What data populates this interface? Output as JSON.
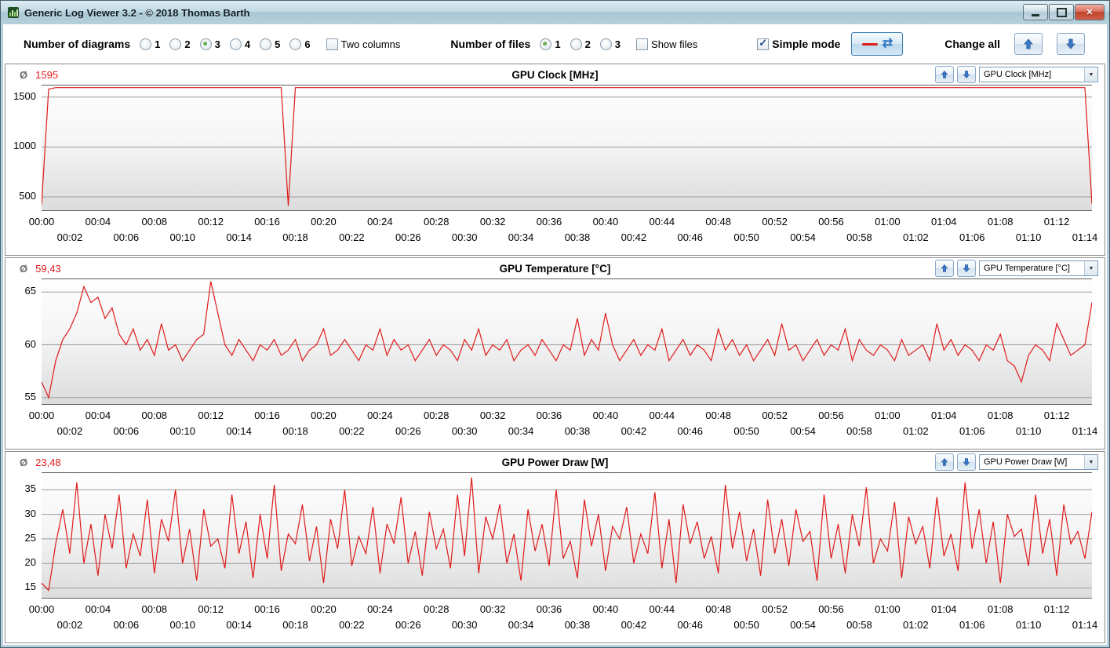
{
  "window": {
    "title": "Generic Log Viewer 3.2 - © 2018 Thomas Barth"
  },
  "toolbar": {
    "diagrams_label": "Number of diagrams",
    "diagram_options": [
      "1",
      "2",
      "3",
      "4",
      "5",
      "6"
    ],
    "diagrams_selected": "3",
    "two_columns_label": "Two columns",
    "files_label": "Number of files",
    "file_options": [
      "1",
      "2",
      "3"
    ],
    "files_selected": "1",
    "show_files_label": "Show files",
    "simple_mode_label": "Simple mode",
    "change_all_label": "Change all",
    "refresh_icon": "⇄"
  },
  "panels": [
    {
      "avg_symbol": "Ø",
      "avg": "1595",
      "title": "GPU Clock [MHz]",
      "combo": "GPU Clock [MHz]"
    },
    {
      "avg_symbol": "Ø",
      "avg": "59,43",
      "title": "GPU Temperature [°C]",
      "combo": "GPU Temperature [°C]"
    },
    {
      "avg_symbol": "Ø",
      "avg": "23,48",
      "title": "GPU Power Draw [W]",
      "combo": "GPU Power Draw [W]"
    }
  ],
  "chart_data": [
    {
      "type": "line",
      "title": "GPU Clock [MHz]",
      "average": 1595,
      "color": "#e01b1b",
      "grid": "horizontal",
      "ylim": [
        366,
        1616
      ],
      "yticks": [
        500,
        1000,
        1500
      ],
      "x_min": 0,
      "x_max": 74.5,
      "x_step": 0.5,
      "x_labels_row1": [
        "00:00",
        "00:04",
        "00:08",
        "00:12",
        "00:16",
        "00:20",
        "00:24",
        "00:28",
        "00:32",
        "00:36",
        "00:40",
        "00:44",
        "00:48",
        "00:52",
        "00:56",
        "01:00",
        "01:04",
        "01:08",
        "01:12"
      ],
      "x_labels_row2": [
        "00:02",
        "00:06",
        "00:10",
        "00:14",
        "00:18",
        "00:22",
        "00:26",
        "00:30",
        "00:34",
        "00:38",
        "00:42",
        "00:46",
        "00:50",
        "00:54",
        "00:58",
        "01:02",
        "01:06",
        "01:10",
        "01:14"
      ],
      "values": [
        420,
        1580,
        1595,
        1595,
        1595,
        1595,
        1595,
        1595,
        1595,
        1595,
        1595,
        1595,
        1595,
        1595,
        1595,
        1595,
        1595,
        1595,
        1595,
        1595,
        1595,
        1595,
        1595,
        1595,
        1595,
        1595,
        1595,
        1595,
        1595,
        1595,
        1595,
        1595,
        1595,
        1595,
        1595,
        410,
        1595,
        1595,
        1595,
        1595,
        1595,
        1595,
        1595,
        1595,
        1595,
        1595,
        1595,
        1595,
        1595,
        1595,
        1595,
        1595,
        1595,
        1595,
        1595,
        1595,
        1595,
        1595,
        1595,
        1595,
        1595,
        1595,
        1595,
        1595,
        1595,
        1595,
        1595,
        1595,
        1595,
        1595,
        1595,
        1595,
        1595,
        1595,
        1595,
        1595,
        1595,
        1595,
        1595,
        1595,
        1595,
        1595,
        1595,
        1595,
        1595,
        1595,
        1595,
        1595,
        1595,
        1595,
        1595,
        1595,
        1595,
        1595,
        1595,
        1595,
        1595,
        1595,
        1595,
        1595,
        1595,
        1595,
        1595,
        1595,
        1595,
        1595,
        1595,
        1595,
        1595,
        1595,
        1595,
        1595,
        1595,
        1595,
        1595,
        1595,
        1595,
        1595,
        1595,
        1595,
        1595,
        1595,
        1595,
        1595,
        1595,
        1595,
        1595,
        1595,
        1595,
        1595,
        1595,
        1595,
        1595,
        1595,
        1595,
        1595,
        1595,
        1595,
        1595,
        1595,
        1595,
        1595,
        1595,
        1595,
        1595,
        1595,
        1595,
        1595,
        1595,
        430
      ]
    },
    {
      "type": "line",
      "title": "GPU Temperature [°C]",
      "average": 59.43,
      "color": "#e01b1b",
      "grid": "horizontal",
      "ylim": [
        54.4,
        66.2
      ],
      "yticks": [
        55,
        60,
        65
      ],
      "x_min": 0,
      "x_max": 74.5,
      "x_step": 0.5,
      "x_labels_row1": [
        "00:00",
        "00:04",
        "00:08",
        "00:12",
        "00:16",
        "00:20",
        "00:24",
        "00:28",
        "00:32",
        "00:36",
        "00:40",
        "00:44",
        "00:48",
        "00:52",
        "00:56",
        "01:00",
        "01:04",
        "01:08",
        "01:12"
      ],
      "x_labels_row2": [
        "00:02",
        "00:06",
        "00:10",
        "00:14",
        "00:18",
        "00:22",
        "00:26",
        "00:30",
        "00:34",
        "00:38",
        "00:42",
        "00:46",
        "00:50",
        "00:54",
        "00:58",
        "01:02",
        "01:06",
        "01:10",
        "01:14"
      ],
      "values": [
        56.5,
        55,
        58.5,
        60.5,
        61.5,
        63,
        65.5,
        64,
        64.5,
        62.5,
        63.5,
        61,
        60,
        61.5,
        59.5,
        60.5,
        59,
        62,
        59.5,
        60,
        58.5,
        59.5,
        60.5,
        61,
        66,
        63,
        60,
        59,
        60.5,
        59.5,
        58.5,
        60,
        59.5,
        60.5,
        59,
        59.5,
        60.5,
        58.5,
        59.5,
        60,
        61.5,
        59,
        59.5,
        60.5,
        59.5,
        58.5,
        60,
        59.5,
        61.5,
        59,
        60.5,
        59.5,
        60,
        58.5,
        59.5,
        60.5,
        59,
        60,
        59.5,
        58.5,
        60.5,
        59.5,
        61.5,
        59,
        60,
        59.5,
        60.5,
        58.5,
        59.5,
        60,
        59,
        60.5,
        59.5,
        58.5,
        60,
        59.5,
        62.5,
        59,
        60.5,
        59.5,
        63,
        60,
        58.5,
        59.5,
        60.5,
        59,
        60,
        59.5,
        61.5,
        58.5,
        59.5,
        60.5,
        59,
        60,
        59.5,
        58.5,
        61.5,
        59.5,
        60.5,
        59,
        60,
        58.5,
        59.5,
        60.5,
        59,
        62,
        59.5,
        60,
        58.5,
        59.5,
        60.5,
        59,
        60,
        59.5,
        61.5,
        58.5,
        60.5,
        59.5,
        59,
        60,
        59.5,
        58.5,
        60.5,
        59,
        59.5,
        60,
        58.5,
        62,
        59.5,
        60.5,
        59,
        60,
        59.5,
        58.5,
        60,
        59.5,
        61,
        58.5,
        58,
        56.5,
        59,
        60,
        59.5,
        58.5,
        62,
        60.5,
        59,
        59.5,
        60,
        64
      ]
    },
    {
      "type": "line",
      "title": "GPU Power Draw [W]",
      "average": 23.48,
      "color": "#e01b1b",
      "grid": "horizontal",
      "ylim": [
        13,
        38.4
      ],
      "yticks": [
        15,
        20,
        25,
        30,
        35
      ],
      "x_min": 0,
      "x_max": 74.5,
      "x_step": 0.5,
      "x_labels_row1": [
        "00:00",
        "00:04",
        "00:08",
        "00:12",
        "00:16",
        "00:20",
        "00:24",
        "00:28",
        "00:32",
        "00:36",
        "00:40",
        "00:44",
        "00:48",
        "00:52",
        "00:56",
        "01:00",
        "01:04",
        "01:08",
        "01:12"
      ],
      "x_labels_row2": [
        "00:02",
        "00:06",
        "00:10",
        "00:14",
        "00:18",
        "00:22",
        "00:26",
        "00:30",
        "00:34",
        "00:38",
        "00:42",
        "00:46",
        "00:50",
        "00:54",
        "00:58",
        "01:02",
        "01:06",
        "01:10",
        "01:14"
      ],
      "values": [
        16,
        14.5,
        24,
        31,
        22,
        36.5,
        20,
        28,
        17.5,
        30,
        23,
        34,
        19,
        26,
        21.5,
        33,
        18,
        29,
        24.5,
        35,
        20,
        27,
        16.5,
        31,
        23.5,
        25,
        19,
        34,
        22,
        28.5,
        17,
        30,
        21,
        36,
        18.5,
        26,
        24,
        32,
        20.5,
        27.5,
        16,
        29,
        23,
        35,
        19.5,
        25.5,
        22,
        31.5,
        18,
        28,
        24,
        33.5,
        20,
        26.5,
        17.5,
        30.5,
        23,
        27,
        19,
        34,
        21.5,
        37.5,
        18,
        29.5,
        25,
        32,
        20,
        26,
        16.5,
        31,
        22.5,
        28,
        19.5,
        35,
        21,
        24.5,
        17,
        33,
        23.5,
        30,
        18.5,
        27.5,
        25,
        31.5,
        20,
        26,
        22,
        34.5,
        19,
        29,
        16,
        32,
        24,
        28.5,
        21,
        25.5,
        18,
        36,
        23,
        30.5,
        20.5,
        27,
        17.5,
        33,
        22,
        29,
        19.5,
        31,
        24.5,
        26.5,
        16.5,
        34,
        21,
        28,
        18,
        30,
        23.5,
        35.5,
        20,
        25,
        22.5,
        32.5,
        17,
        29.5,
        24,
        27.5,
        19,
        33.5,
        21.5,
        26,
        18.5,
        36.5,
        23,
        31,
        20,
        28.5,
        16,
        30,
        25.5,
        27,
        19.5,
        34,
        22,
        29,
        17.5,
        32,
        24,
        26.5,
        21,
        30.5
      ]
    }
  ]
}
